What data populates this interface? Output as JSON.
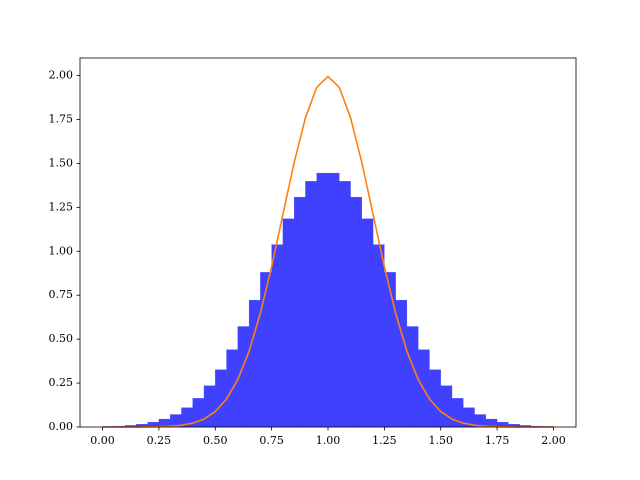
{
  "chart_data": {
    "type": "histogram",
    "bins": [
      0,
      0.05,
      0.1,
      0.15,
      0.2,
      0.25,
      0.3,
      0.35,
      0.4,
      0.45,
      0.5,
      0.55,
      0.6,
      0.65,
      0.7,
      0.75,
      0.8,
      0.85,
      0.9,
      0.95,
      1,
      1.05,
      1.1,
      1.15,
      1.2,
      1.25,
      1.3,
      1.35,
      1.4,
      1.45,
      1.5,
      1.55,
      1.6,
      1.65,
      1.7,
      1.75,
      1.8,
      1.85,
      1.9,
      1.95,
      2
    ],
    "values": [
      0.003,
      0.005,
      0.009,
      0.016,
      0.027,
      0.045,
      0.071,
      0.11,
      0.163,
      0.235,
      0.326,
      0.44,
      0.572,
      0.722,
      0.88,
      1.038,
      1.185,
      1.308,
      1.398,
      1.445,
      1.445,
      1.398,
      1.308,
      1.185,
      1.038,
      0.88,
      0.722,
      0.572,
      0.44,
      0.326,
      0.235,
      0.163,
      0.11,
      0.071,
      0.045,
      0.027,
      0.016,
      0.009,
      0.005,
      0.003
    ],
    "color": "#4040ff",
    "overlay": {
      "type": "line",
      "color": "#ff7f0e",
      "x": [
        0,
        0.05,
        0.1,
        0.15,
        0.2,
        0.25,
        0.3,
        0.35,
        0.4,
        0.45,
        0.5,
        0.55,
        0.6,
        0.65,
        0.7,
        0.75,
        0.8,
        0.85,
        0.9,
        0.95,
        1,
        1.05,
        1.1,
        1.15,
        1.2,
        1.25,
        1.3,
        1.35,
        1.4,
        1.45,
        1.5,
        1.55,
        1.6,
        1.65,
        1.7,
        1.75,
        1.8,
        1.85,
        1.9,
        1.95,
        2
      ],
      "values": [
        0,
        0,
        0,
        0,
        0.001,
        0.002,
        0.004,
        0.01,
        0.022,
        0.045,
        0.088,
        0.159,
        0.27,
        0.431,
        0.648,
        0.913,
        1.21,
        1.506,
        1.76,
        1.933,
        1.995,
        1.933,
        1.76,
        1.506,
        1.21,
        0.913,
        0.648,
        0.431,
        0.27,
        0.159,
        0.088,
        0.045,
        0.022,
        0.01,
        0.004,
        0.002,
        0.001,
        0,
        0,
        0,
        0
      ]
    },
    "xlim": [
      -0.1,
      2.1
    ],
    "ylim": [
      0,
      2.1
    ],
    "xticks": [
      {
        "value": 0,
        "label": "0.00"
      },
      {
        "value": 0.25,
        "label": "0.25"
      },
      {
        "value": 0.5,
        "label": "0.50"
      },
      {
        "value": 0.75,
        "label": "0.75"
      },
      {
        "value": 1,
        "label": "1.00"
      },
      {
        "value": 1.25,
        "label": "1.25"
      },
      {
        "value": 1.5,
        "label": "1.50"
      },
      {
        "value": 1.75,
        "label": "1.75"
      },
      {
        "value": 2,
        "label": "2.00"
      }
    ],
    "yticks": [
      {
        "value": 0,
        "label": "0.00"
      },
      {
        "value": 0.25,
        "label": "0.25"
      },
      {
        "value": 0.5,
        "label": "0.50"
      },
      {
        "value": 0.75,
        "label": "0.75"
      },
      {
        "value": 1,
        "label": "1.00"
      },
      {
        "value": 1.25,
        "label": "1.25"
      },
      {
        "value": 1.5,
        "label": "1.50"
      },
      {
        "value": 1.75,
        "label": "1.75"
      },
      {
        "value": 2,
        "label": "2.00"
      }
    ],
    "grid": false
  }
}
